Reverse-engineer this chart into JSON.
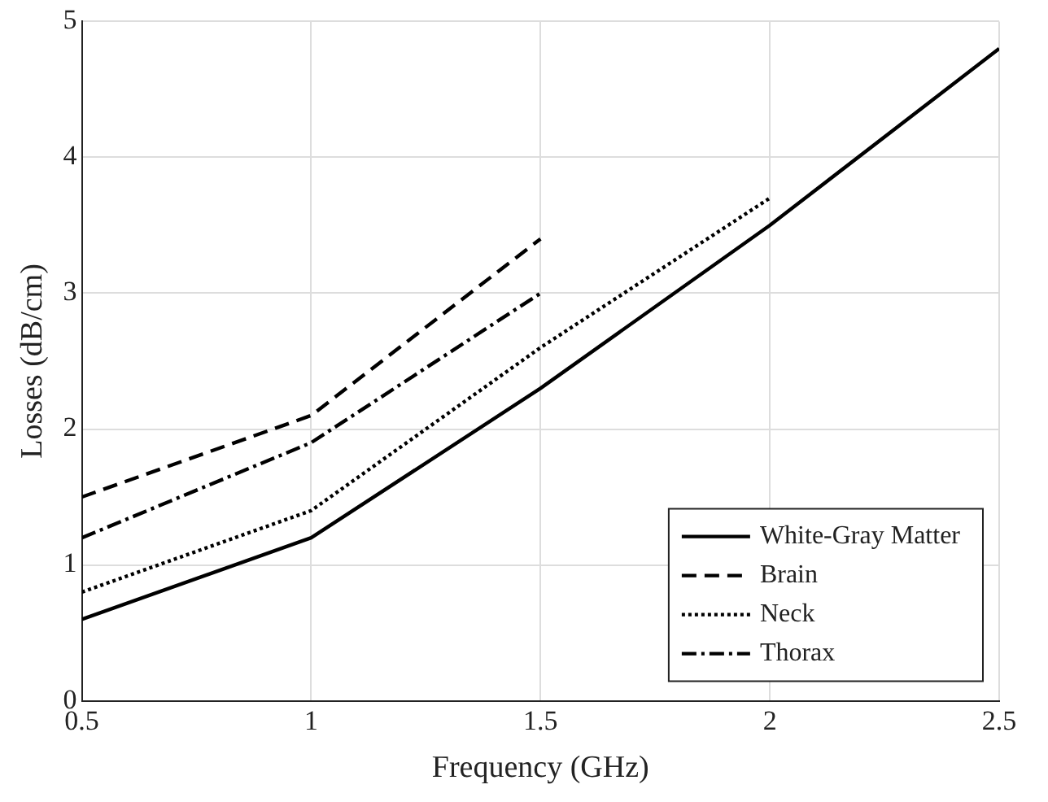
{
  "chart_data": {
    "type": "line",
    "xlabel": "Frequency (GHz)",
    "ylabel": "Losses (dB/cm)",
    "xlim": [
      0.5,
      2.5
    ],
    "xticks": [
      0.5,
      1,
      1.5,
      2,
      2.5
    ],
    "ylim": [
      0,
      5
    ],
    "yticks": [
      0,
      1,
      2,
      3,
      4,
      5
    ],
    "grid": true,
    "legend": "bottom right",
    "marker": "none",
    "series": [
      {
        "name": "White-Gray Matter",
        "color": "#000000",
        "line_style": "solid",
        "x": [
          0.5,
          1,
          1.5,
          2,
          2.5
        ],
        "values": [
          0.6,
          1.2,
          2.3,
          3.5,
          4.8
        ]
      },
      {
        "name": "Brain",
        "color": "#000000",
        "line_style": "dashed",
        "x": [
          0.5,
          1,
          1.5
        ],
        "values": [
          1.5,
          2.1,
          3.4
        ]
      },
      {
        "name": "Neck",
        "color": "#000000",
        "line_style": "dotted",
        "x": [
          0.5,
          1,
          1.5,
          2
        ],
        "values": [
          0.8,
          1.4,
          2.6,
          3.7
        ]
      },
      {
        "name": "Thorax",
        "color": "#000000",
        "line_style": "dashdot",
        "x": [
          0.5,
          1,
          1.5
        ],
        "values": [
          1.2,
          1.9,
          3.0
        ]
      }
    ]
  }
}
